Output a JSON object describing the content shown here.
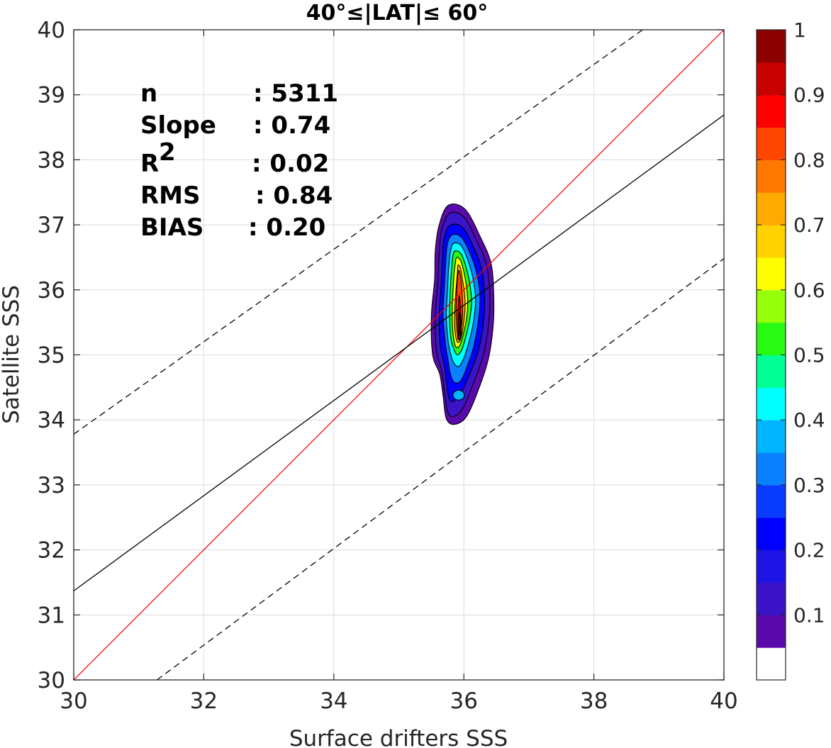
{
  "chart_data": {
    "type": "contour",
    "title": "40°≤|LAT|≤ 60°",
    "xlabel": "Surface drifters SSS",
    "ylabel": "Satellite SSS",
    "xlim": [
      30,
      40
    ],
    "ylim": [
      30,
      40
    ],
    "xticks": [
      "30",
      "32",
      "34",
      "36",
      "38",
      "40"
    ],
    "yticks": [
      "30",
      "31",
      "32",
      "33",
      "34",
      "35",
      "36",
      "37",
      "38",
      "39",
      "40"
    ],
    "grid": true,
    "stats": [
      {
        "label": "n",
        "value": ": 5311"
      },
      {
        "label": "Slope",
        "value": ": 0.74"
      },
      {
        "label": "R",
        "sup": "2",
        "value": ": 0.02"
      },
      {
        "label": "RMS",
        "value": ": 0.84"
      },
      {
        "label": "BIAS",
        "value": ": 0.20"
      }
    ],
    "lines": {
      "identity": {
        "color": "#ff0000",
        "points": [
          [
            30,
            30
          ],
          [
            40,
            40
          ]
        ]
      },
      "regression": {
        "color": "#000000",
        "points": [
          [
            30,
            31.37
          ],
          [
            40,
            38.69
          ]
        ]
      },
      "upper_bound": {
        "color": "#000000",
        "style": "dashed",
        "points": [
          [
            30,
            33.78
          ],
          [
            38.75,
            40
          ]
        ]
      },
      "lower_bound": {
        "color": "#000000",
        "style": "dashed",
        "points": [
          [
            31.28,
            30
          ],
          [
            40,
            36.48
          ]
        ]
      }
    },
    "density": {
      "levels": [
        0.05,
        0.1,
        0.15,
        0.2,
        0.25,
        0.3,
        0.35,
        0.4,
        0.45,
        0.5,
        0.55,
        0.6,
        0.65,
        0.7,
        0.75,
        0.8,
        0.85,
        0.9,
        0.95
      ],
      "secondary_mode": {
        "x": 35.92,
        "y": 34.38,
        "value": 0.38
      },
      "contours": [
        {
          "level": 0.05,
          "x": [
            35.76,
            36.02,
            36.26,
            36.42,
            36.46,
            36.45,
            36.38,
            36.23,
            36.04,
            35.85,
            35.73,
            35.68,
            35.63,
            35.52,
            35.5,
            35.55,
            35.56,
            35.62
          ],
          "y": [
            37.3,
            37.24,
            36.8,
            36.4,
            35.9,
            35.44,
            34.95,
            34.48,
            34.05,
            33.93,
            34.02,
            34.37,
            34.7,
            35.0,
            35.6,
            36.15,
            36.6,
            37.0
          ]
        },
        {
          "level": 0.1,
          "x": [
            35.78,
            36.0,
            36.2,
            36.35,
            36.4,
            36.38,
            36.3,
            36.15,
            35.98,
            35.83,
            35.75,
            35.7,
            35.66,
            35.58,
            35.56,
            35.6,
            35.62,
            35.66
          ],
          "y": [
            37.18,
            37.12,
            36.75,
            36.38,
            35.9,
            35.46,
            35.0,
            34.57,
            34.17,
            34.05,
            34.13,
            34.45,
            34.75,
            35.05,
            35.6,
            36.12,
            36.55,
            36.92
          ]
        },
        {
          "level": 0.2,
          "x": [
            35.8,
            35.98,
            36.14,
            36.27,
            36.32,
            36.3,
            36.22,
            36.08,
            35.95,
            35.83,
            35.77,
            35.73,
            35.7,
            35.64,
            35.62,
            35.65,
            35.67,
            35.7
          ],
          "y": [
            37.0,
            36.96,
            36.68,
            36.33,
            35.9,
            35.48,
            35.05,
            34.68,
            34.4,
            34.28,
            34.34,
            34.6,
            34.85,
            35.1,
            35.6,
            36.08,
            36.48,
            36.82
          ]
        },
        {
          "level": 0.3,
          "x": [
            35.83,
            35.97,
            36.1,
            36.2,
            36.25,
            36.22,
            36.15,
            36.05,
            35.95,
            35.85,
            35.79,
            35.76,
            35.72,
            35.68,
            35.7,
            35.72,
            35.75
          ],
          "y": [
            36.85,
            36.8,
            36.55,
            36.25,
            35.88,
            35.5,
            35.12,
            34.82,
            34.6,
            34.58,
            34.72,
            34.9,
            35.15,
            35.6,
            36.05,
            36.42,
            36.72
          ]
        },
        {
          "level": 0.4,
          "x": [
            35.85,
            35.96,
            36.06,
            36.14,
            36.18,
            36.15,
            36.08,
            36.0,
            35.92,
            35.85,
            35.8,
            35.76,
            35.73,
            35.75,
            35.77,
            35.8
          ],
          "y": [
            36.72,
            36.68,
            36.46,
            36.18,
            35.85,
            35.52,
            35.2,
            34.95,
            34.82,
            34.87,
            35.0,
            35.2,
            35.6,
            36.02,
            36.38,
            36.62
          ]
        },
        {
          "level": 0.5,
          "x": [
            35.87,
            35.96,
            36.03,
            36.09,
            36.12,
            36.09,
            36.03,
            35.97,
            35.9,
            35.85,
            35.8,
            35.78,
            35.79,
            35.81,
            35.83
          ],
          "y": [
            36.6,
            36.55,
            36.36,
            36.1,
            35.82,
            35.55,
            35.28,
            35.08,
            35.0,
            35.08,
            35.25,
            35.6,
            35.98,
            36.3,
            36.52
          ]
        },
        {
          "level": 0.6,
          "x": [
            35.89,
            35.95,
            36.0,
            36.04,
            36.06,
            36.04,
            35.99,
            35.94,
            35.88,
            35.84,
            35.82,
            35.83,
            35.85,
            35.87
          ],
          "y": [
            36.5,
            36.45,
            36.28,
            36.05,
            35.8,
            35.55,
            35.32,
            35.15,
            35.12,
            35.28,
            35.6,
            35.92,
            36.25,
            36.42
          ]
        },
        {
          "level": 0.7,
          "x": [
            35.91,
            35.95,
            35.98,
            36.01,
            36.02,
            36.0,
            35.97,
            35.93,
            35.89,
            35.86,
            35.86,
            35.88,
            35.9
          ],
          "y": [
            36.38,
            36.33,
            36.15,
            35.95,
            35.75,
            35.52,
            35.32,
            35.2,
            35.22,
            35.42,
            35.7,
            36.0,
            36.25
          ]
        },
        {
          "level": 0.8,
          "x": [
            35.92,
            35.95,
            35.97,
            35.98,
            35.98,
            35.96,
            35.94,
            35.91,
            35.89,
            35.88,
            35.89,
            35.9
          ],
          "y": [
            36.3,
            36.2,
            36.0,
            35.8,
            35.6,
            35.4,
            35.25,
            35.25,
            35.45,
            35.7,
            35.95,
            36.15
          ]
        },
        {
          "level": 0.9,
          "x": [
            35.93,
            35.95,
            35.96,
            35.96,
            35.94,
            35.92,
            35.91,
            35.91,
            35.92
          ],
          "y": [
            35.9,
            35.7,
            35.5,
            35.35,
            35.24,
            35.26,
            35.45,
            35.65,
            35.82
          ]
        },
        {
          "level": 0.95,
          "x": [
            35.935,
            35.95,
            35.95,
            35.935,
            35.925,
            35.925
          ],
          "y": [
            35.65,
            35.5,
            35.36,
            35.3,
            35.42,
            35.58
          ]
        }
      ]
    },
    "colorbar": {
      "ticks": [
        "0.1",
        "0.2",
        "0.3",
        "0.4",
        "0.5",
        "0.6",
        "0.7",
        "0.8",
        "0.9",
        "1"
      ],
      "colors": [
        "#ffffff",
        "#5a0aaa",
        "#3c14c8",
        "#1e14e6",
        "#0000ff",
        "#0a3cff",
        "#0a82ff",
        "#00b4ff",
        "#00ffff",
        "#00ff96",
        "#28fa14",
        "#96ff0a",
        "#ffff00",
        "#ffd200",
        "#ffaa00",
        "#ff7800",
        "#ff4600",
        "#ff0000",
        "#c80000",
        "#8c0000"
      ]
    }
  }
}
